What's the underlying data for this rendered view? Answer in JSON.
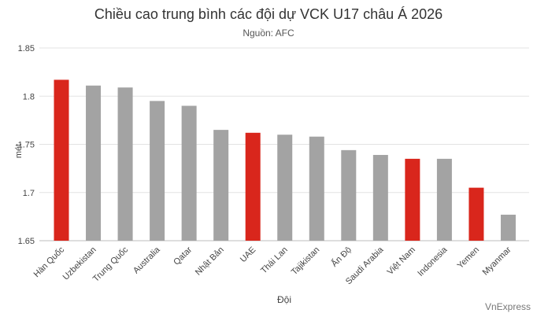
{
  "chart_data": {
    "type": "bar",
    "title": "Chiều cao trung bình các đội dự VCK U17 châu Á 2026",
    "subtitle": "Nguồn: AFC",
    "xlabel": "Đội",
    "ylabel": "mét",
    "ylim": [
      1.65,
      1.85
    ],
    "yticks": [
      "1.65",
      "1.7",
      "1.75",
      "1.8",
      "1.85"
    ],
    "grid": true,
    "categories": [
      "Hàn Quốc",
      "Uzbekistan",
      "Trung Quốc",
      "Australia",
      "Qatar",
      "Nhật Bản",
      "UAE",
      "Thái Lan",
      "Tajikistan",
      "Ấn Độ",
      "Saudi Arabia",
      "Việt Nam",
      "Indonesia",
      "Yemen",
      "Myanmar"
    ],
    "values": [
      1.817,
      1.811,
      1.809,
      1.795,
      1.79,
      1.765,
      1.762,
      1.76,
      1.758,
      1.744,
      1.739,
      1.735,
      1.735,
      1.705,
      1.677
    ],
    "highlighted": [
      "Hàn Quốc",
      "UAE",
      "Việt Nam",
      "Yemen"
    ],
    "colors": {
      "highlight": "#d9261c",
      "default": "#a3a3a3",
      "grid": "#e3e3e3",
      "axis": "#bdbdbd"
    }
  },
  "watermark": "VnExpress"
}
